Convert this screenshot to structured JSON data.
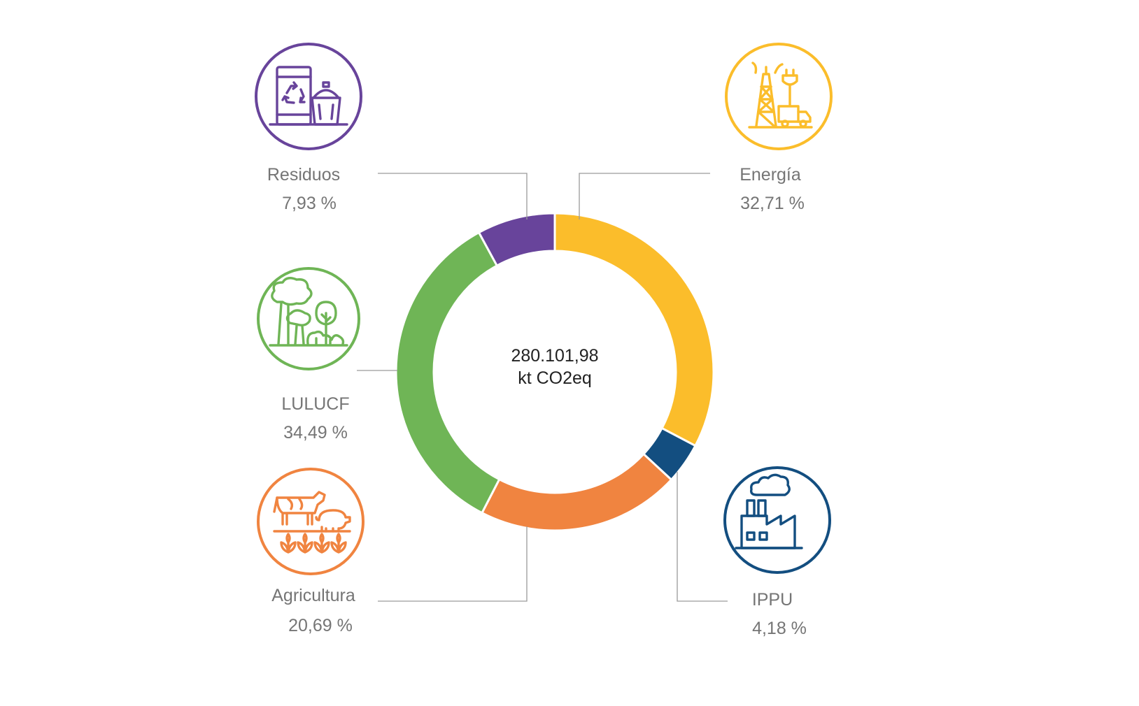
{
  "chart_data": {
    "type": "pie",
    "subtype": "donut",
    "center_value": "280.101,98",
    "center_unit": "kt CO2eq",
    "slices": [
      {
        "key": "energia",
        "label": "Energía",
        "value": 32.71,
        "value_label": "32,71 %",
        "color": "#fbbd2b",
        "icon": "oil-derrick-plug-truck-icon"
      },
      {
        "key": "ippu",
        "label": "IPPU",
        "value": 4.18,
        "value_label": "4,18 %",
        "color": "#134e80",
        "icon": "factory-icon"
      },
      {
        "key": "agricultura",
        "label": "Agricultura",
        "value": 20.69,
        "value_label": "20,69 %",
        "color": "#f08440",
        "icon": "cow-pig-crops-icon"
      },
      {
        "key": "lulucf",
        "label": "LULUCF",
        "value": 34.49,
        "value_label": "34,49 %",
        "color": "#6fb556",
        "icon": "trees-icon"
      },
      {
        "key": "residuos",
        "label": "Residuos",
        "value": 7.93,
        "value_label": "7,93 %",
        "color": "#68449b",
        "icon": "recycle-bin-icon"
      }
    ],
    "legend": "none"
  }
}
